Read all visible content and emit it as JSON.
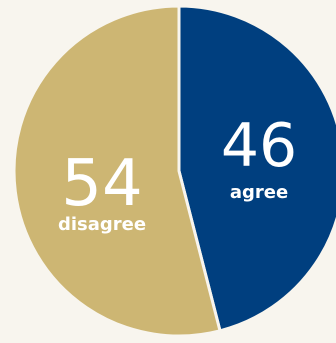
{
  "chart_data": {
    "type": "pie",
    "slices": [
      {
        "value": 46,
        "label": "agree",
        "color": "#003f7f"
      },
      {
        "value": 54,
        "label": "disagree",
        "color": "#cdb673"
      }
    ],
    "start": "top",
    "direction": "clockwise",
    "legend": "none",
    "background": "#f8f5ee"
  }
}
